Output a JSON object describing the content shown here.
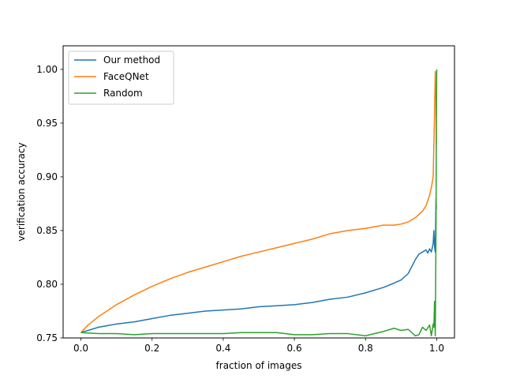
{
  "chart_data": {
    "type": "line",
    "title": "",
    "xlabel": "fraction of images",
    "ylabel": "verification accuracy",
    "xlim": [
      -0.05,
      1.05
    ],
    "ylim": [
      0.75,
      1.022
    ],
    "xticks": [
      0.0,
      0.2,
      0.4,
      0.6,
      0.8,
      1.0
    ],
    "xtick_labels": [
      "0.0",
      "0.2",
      "0.4",
      "0.6",
      "0.8",
      "1.0"
    ],
    "yticks": [
      0.75,
      0.8,
      0.85,
      0.9,
      0.95,
      1.0
    ],
    "ytick_labels": [
      "0.75",
      "0.80",
      "0.85",
      "0.90",
      "0.95",
      "1.00"
    ],
    "grid": false,
    "legend_position": "top-left",
    "series": [
      {
        "name": "Our method",
        "color": "#1f77b4",
        "x": [
          0.0,
          0.02,
          0.05,
          0.1,
          0.15,
          0.2,
          0.25,
          0.3,
          0.35,
          0.4,
          0.45,
          0.5,
          0.55,
          0.6,
          0.65,
          0.7,
          0.75,
          0.8,
          0.85,
          0.88,
          0.9,
          0.92,
          0.94,
          0.95,
          0.96,
          0.97,
          0.975,
          0.98,
          0.985,
          0.99,
          0.992,
          0.994,
          0.996,
          0.998,
          0.999
        ],
        "y": [
          0.755,
          0.757,
          0.76,
          0.763,
          0.765,
          0.768,
          0.771,
          0.773,
          0.775,
          0.776,
          0.777,
          0.779,
          0.78,
          0.781,
          0.783,
          0.786,
          0.788,
          0.792,
          0.797,
          0.801,
          0.804,
          0.81,
          0.823,
          0.828,
          0.83,
          0.832,
          0.829,
          0.833,
          0.83,
          0.838,
          0.85,
          0.835,
          0.83,
          0.88,
          0.87
        ]
      },
      {
        "name": "FaceQNet",
        "color": "#ff7f0e",
        "x": [
          0.0,
          0.02,
          0.05,
          0.1,
          0.15,
          0.2,
          0.25,
          0.3,
          0.35,
          0.4,
          0.45,
          0.5,
          0.55,
          0.6,
          0.65,
          0.7,
          0.75,
          0.8,
          0.85,
          0.88,
          0.9,
          0.92,
          0.94,
          0.96,
          0.97,
          0.98,
          0.985,
          0.99,
          0.992,
          0.994,
          0.996,
          0.998,
          0.999
        ],
        "y": [
          0.755,
          0.762,
          0.77,
          0.781,
          0.79,
          0.798,
          0.805,
          0.811,
          0.816,
          0.821,
          0.826,
          0.83,
          0.834,
          0.838,
          0.842,
          0.847,
          0.85,
          0.852,
          0.855,
          0.855,
          0.856,
          0.858,
          0.862,
          0.868,
          0.873,
          0.883,
          0.89,
          0.9,
          0.93,
          0.96,
          0.998,
          0.97,
          0.93
        ]
      },
      {
        "name": "Random",
        "color": "#2ca02c",
        "x": [
          0.0,
          0.05,
          0.1,
          0.15,
          0.2,
          0.25,
          0.3,
          0.35,
          0.4,
          0.45,
          0.5,
          0.55,
          0.6,
          0.65,
          0.7,
          0.75,
          0.8,
          0.85,
          0.88,
          0.9,
          0.92,
          0.94,
          0.95,
          0.96,
          0.97,
          0.98,
          0.985,
          0.99,
          0.992,
          0.994,
          0.996,
          0.997,
          0.998,
          0.999,
          1.0
        ],
        "y": [
          0.755,
          0.754,
          0.754,
          0.753,
          0.754,
          0.754,
          0.754,
          0.754,
          0.754,
          0.755,
          0.755,
          0.755,
          0.753,
          0.753,
          0.754,
          0.754,
          0.752,
          0.756,
          0.759,
          0.757,
          0.758,
          0.752,
          0.753,
          0.76,
          0.757,
          0.762,
          0.752,
          0.763,
          0.76,
          0.784,
          0.752,
          0.8,
          0.85,
          0.95,
          1.0
        ]
      }
    ]
  }
}
